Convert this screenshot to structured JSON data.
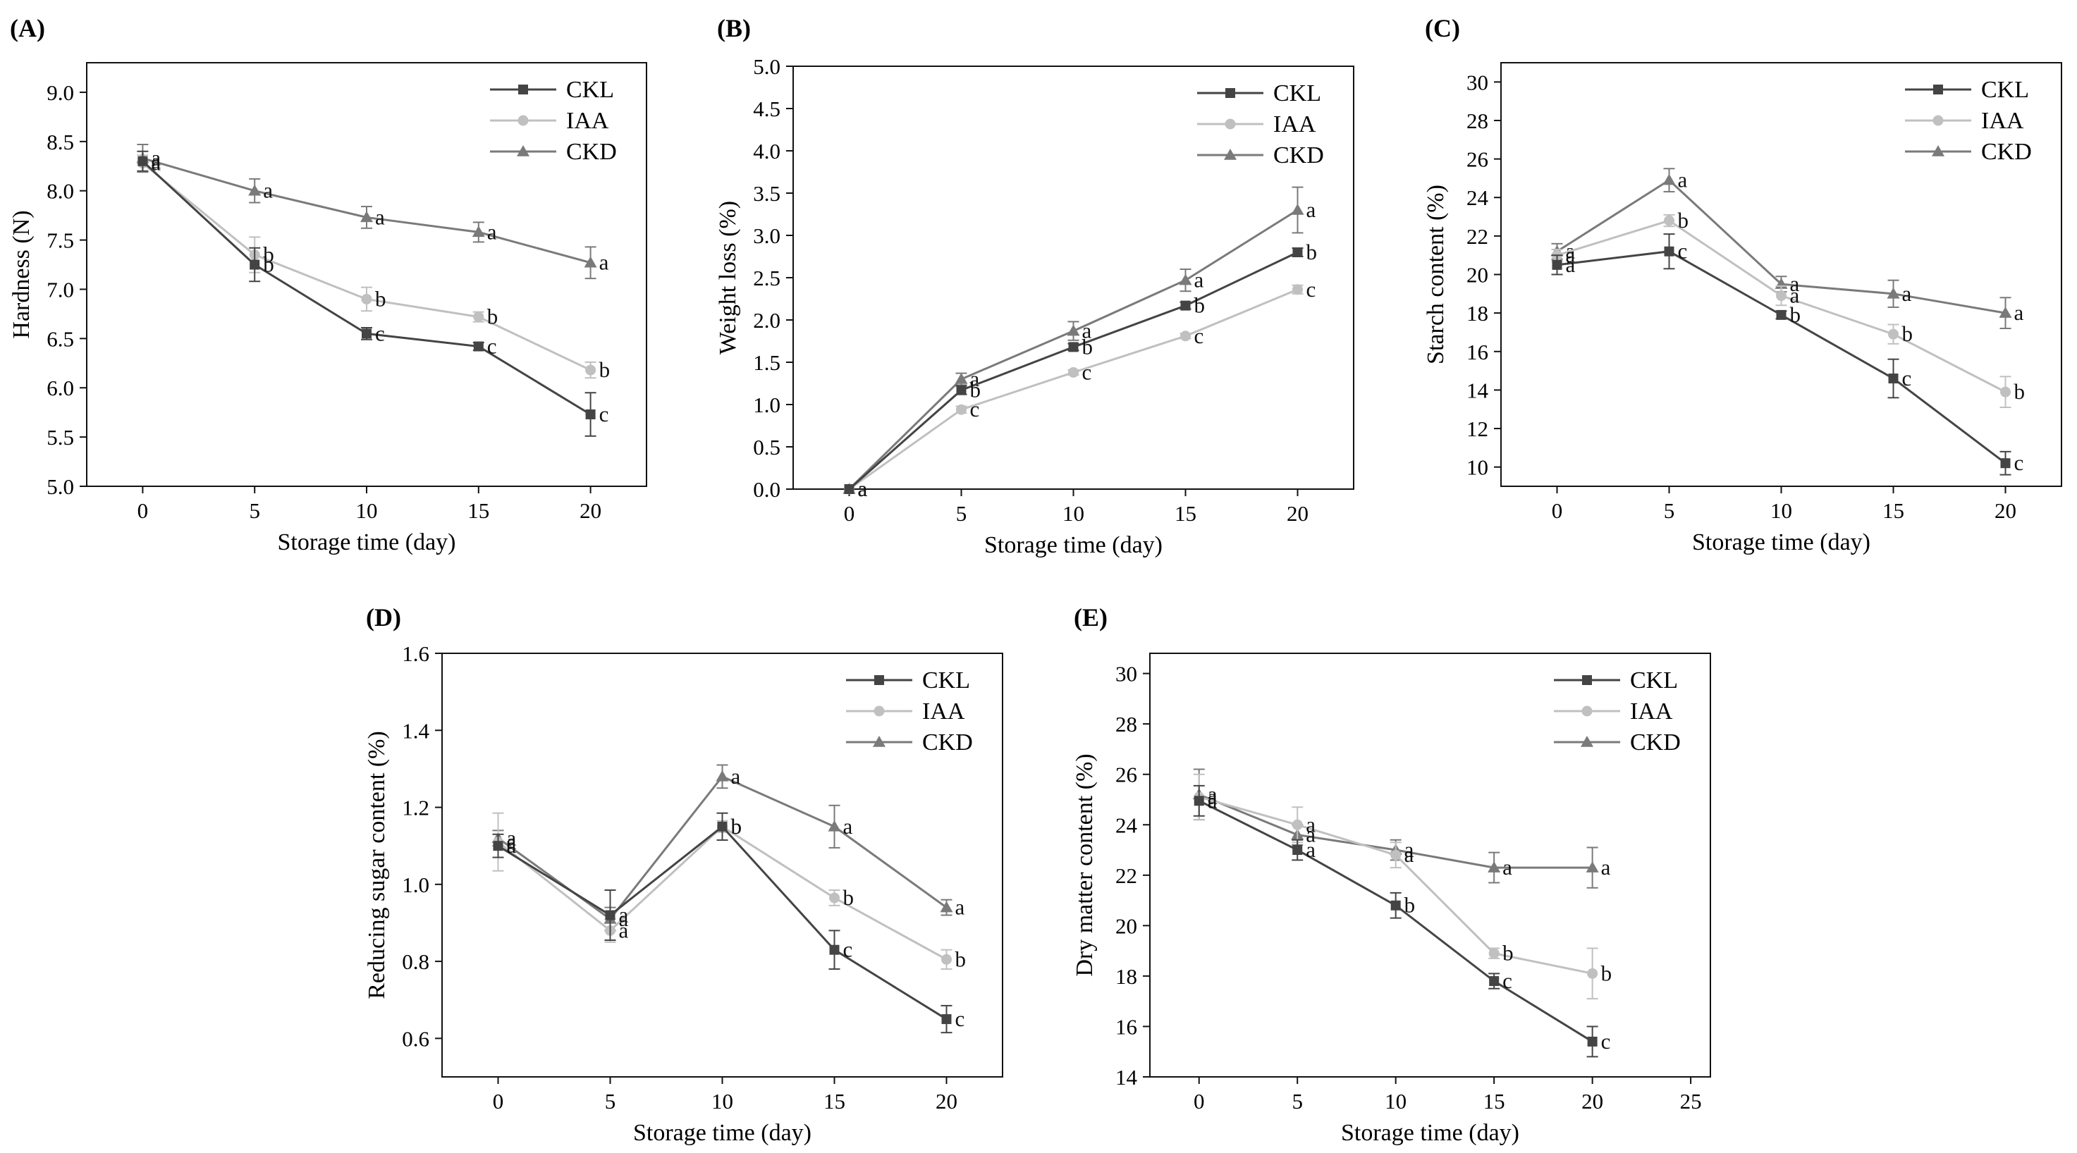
{
  "figure": {
    "series_styles": {
      "CKL": {
        "color": "#444444",
        "marker": "square"
      },
      "IAA": {
        "color": "#c0c0c0",
        "marker": "circle"
      },
      "CKD": {
        "color": "#7a7a7a",
        "marker": "triangle"
      }
    }
  },
  "chart_data": [
    {
      "id": "A",
      "panel_label": "(A)",
      "type": "line",
      "xlabel": "Storage time (day)",
      "ylabel": "Hardness (N)",
      "xlim": [
        -2.5,
        22.5
      ],
      "ylim": [
        5.0,
        9.3
      ],
      "xticks": [
        0,
        5,
        10,
        15,
        20
      ],
      "yticks": [
        5.0,
        5.5,
        6.0,
        6.5,
        7.0,
        7.5,
        8.0,
        8.5,
        9.0
      ],
      "ytick_labels": [
        "5.0",
        "5.5",
        "6.0",
        "6.5",
        "7.0",
        "7.5",
        "8.0",
        "8.5",
        "9.0"
      ],
      "legend_position": "top-right",
      "series": [
        {
          "name": "CKL",
          "x": [
            0,
            5,
            10,
            15,
            20
          ],
          "values": [
            8.3,
            7.25,
            6.55,
            6.42,
            5.73
          ],
          "errors": [
            0.1,
            0.17,
            0.06,
            0.04,
            0.22
          ],
          "letters": [
            "a",
            "b",
            "c",
            "c",
            "c"
          ]
        },
        {
          "name": "IAA",
          "x": [
            0,
            5,
            10,
            15,
            20
          ],
          "values": [
            8.28,
            7.35,
            6.9,
            6.72,
            6.18
          ],
          "errors": [
            0.08,
            0.18,
            0.12,
            0.05,
            0.08
          ],
          "letters": [
            "a",
            "b",
            "b",
            "b",
            "b"
          ]
        },
        {
          "name": "CKD",
          "x": [
            0,
            5,
            10,
            15,
            20
          ],
          "values": [
            8.33,
            8.0,
            7.73,
            7.58,
            7.27
          ],
          "errors": [
            0.14,
            0.12,
            0.11,
            0.1,
            0.16
          ],
          "letters": [
            "a",
            "a",
            "a",
            "a",
            "a"
          ]
        }
      ]
    },
    {
      "id": "B",
      "panel_label": "(B)",
      "type": "line",
      "xlabel": "Storage time (day)",
      "ylabel": "Weight loss (%)",
      "xlim": [
        -2.5,
        22.5
      ],
      "ylim": [
        0,
        5.0
      ],
      "xticks": [
        0,
        5,
        10,
        15,
        20
      ],
      "yticks": [
        0,
        0.5,
        1.0,
        1.5,
        2.0,
        2.5,
        3.0,
        3.5,
        4.0,
        4.5,
        5.0
      ],
      "ytick_labels": [
        "0.0",
        "0.5",
        "1.0",
        "1.5",
        "2.0",
        "2.5",
        "3.0",
        "3.5",
        "4.0",
        "4.5",
        "5.0"
      ],
      "legend_position": "top-right",
      "series": [
        {
          "name": "CKL",
          "x": [
            0,
            5,
            10,
            15,
            20
          ],
          "values": [
            0,
            1.17,
            1.68,
            2.17,
            2.8
          ],
          "errors": [
            0,
            0.05,
            0.04,
            0.04,
            0.05
          ],
          "letters": [
            "a",
            "b",
            "b",
            "b",
            "b"
          ]
        },
        {
          "name": "IAA",
          "x": [
            0,
            5,
            10,
            15,
            20
          ],
          "values": [
            0,
            0.94,
            1.38,
            1.81,
            2.36
          ],
          "errors": [
            0,
            0.04,
            0.03,
            0.03,
            0.05
          ],
          "letters": [
            "a",
            "c",
            "c",
            "c",
            "c"
          ]
        },
        {
          "name": "CKD",
          "x": [
            0,
            5,
            10,
            15,
            20
          ],
          "values": [
            0,
            1.3,
            1.87,
            2.47,
            3.3
          ],
          "errors": [
            0,
            0.07,
            0.11,
            0.13,
            0.27
          ],
          "letters": [
            "a",
            "a",
            "a",
            "a",
            "a"
          ]
        }
      ]
    },
    {
      "id": "C",
      "panel_label": "(C)",
      "type": "line",
      "xlabel": "Storage time (day)",
      "ylabel": "Starch content (%)",
      "xlim": [
        -2.5,
        22.5
      ],
      "ylim": [
        9,
        31
      ],
      "xticks": [
        0,
        5,
        10,
        15,
        20
      ],
      "yticks": [
        10,
        12,
        14,
        16,
        18,
        20,
        22,
        24,
        26,
        28,
        30
      ],
      "ytick_labels": [
        "10",
        "12",
        "14",
        "16",
        "18",
        "20",
        "22",
        "24",
        "26",
        "28",
        "30"
      ],
      "legend_position": "top-right",
      "series": [
        {
          "name": "CKL",
          "x": [
            0,
            5,
            10,
            15,
            20
          ],
          "values": [
            20.5,
            21.2,
            17.9,
            14.6,
            10.2
          ],
          "errors": [
            0.5,
            0.9,
            0.2,
            1.0,
            0.6
          ],
          "letters": [
            "a",
            "c",
            "b",
            "c",
            "c"
          ]
        },
        {
          "name": "IAA",
          "x": [
            0,
            5,
            10,
            15,
            20
          ],
          "values": [
            21.0,
            22.8,
            18.9,
            16.9,
            13.9
          ],
          "errors": [
            0.3,
            0.3,
            0.5,
            0.5,
            0.8
          ],
          "letters": [
            "a",
            "b",
            "a",
            "b",
            "b"
          ]
        },
        {
          "name": "CKD",
          "x": [
            0,
            5,
            10,
            15,
            20
          ],
          "values": [
            21.2,
            24.9,
            19.5,
            19.0,
            18.0
          ],
          "errors": [
            0.4,
            0.6,
            0.4,
            0.7,
            0.8
          ],
          "letters": [
            "a",
            "a",
            "a",
            "a",
            "a"
          ]
        }
      ]
    },
    {
      "id": "D",
      "panel_label": "(D)",
      "type": "line",
      "xlabel": "Storage time (day)",
      "ylabel": "Reducing sugar content (%)",
      "xlim": [
        -2.5,
        22.5
      ],
      "ylim": [
        0.5,
        1.6
      ],
      "xticks": [
        0,
        5,
        10,
        15,
        20
      ],
      "yticks": [
        0.6,
        0.8,
        1.0,
        1.2,
        1.4,
        1.6
      ],
      "ytick_labels": [
        "0.6",
        "0.8",
        "1.0",
        "1.2",
        "1.4",
        "1.6"
      ],
      "legend_position": "top-right",
      "series": [
        {
          "name": "CKL",
          "x": [
            0,
            5,
            10,
            15,
            20
          ],
          "values": [
            1.1,
            0.92,
            1.15,
            0.83,
            0.65
          ],
          "errors": [
            0.03,
            0.065,
            0.035,
            0.05,
            0.035
          ],
          "letters": [
            "a",
            "a",
            "b",
            "c",
            "c"
          ]
        },
        {
          "name": "IAA",
          "x": [
            0,
            5,
            10,
            15,
            20
          ],
          "values": [
            1.11,
            0.88,
            1.15,
            0.965,
            0.805
          ],
          "errors": [
            0.075,
            0.03,
            0.015,
            0.02,
            0.025
          ],
          "letters": [
            "a",
            "a",
            "b",
            "b",
            "b"
          ]
        },
        {
          "name": "CKD",
          "x": [
            0,
            5,
            10,
            15,
            20
          ],
          "values": [
            1.12,
            0.91,
            1.28,
            1.15,
            0.94
          ],
          "errors": [
            0.02,
            0.03,
            0.03,
            0.055,
            0.02
          ],
          "letters": [
            "a",
            "a",
            "a",
            "a",
            "a"
          ]
        }
      ]
    },
    {
      "id": "E",
      "panel_label": "(E)",
      "type": "line",
      "xlabel": "Storage time (day)",
      "ylabel": "Dry matter content (%)",
      "xlim": [
        -2.5,
        26
      ],
      "ylim": [
        14,
        30.8
      ],
      "xticks": [
        0,
        5,
        10,
        15,
        20,
        25
      ],
      "yticks": [
        14,
        16,
        18,
        20,
        22,
        24,
        26,
        28,
        30
      ],
      "ytick_labels": [
        "14",
        "16",
        "18",
        "20",
        "22",
        "24",
        "26",
        "28",
        "30"
      ],
      "legend_position": "top-right",
      "series": [
        {
          "name": "CKL",
          "x": [
            0,
            5,
            10,
            15,
            20
          ],
          "values": [
            24.95,
            23.0,
            20.8,
            17.8,
            15.4
          ],
          "errors": [
            0.6,
            0.4,
            0.5,
            0.3,
            0.6
          ],
          "letters": [
            "a",
            "a",
            "b",
            "c",
            "c"
          ]
        },
        {
          "name": "IAA",
          "x": [
            0,
            5,
            10,
            15,
            20
          ],
          "values": [
            25.1,
            24.0,
            22.8,
            18.9,
            18.1
          ],
          "errors": [
            0.9,
            0.7,
            0.5,
            0.2,
            1.0
          ],
          "letters": [
            "a",
            "a",
            "a",
            "b",
            "b"
          ]
        },
        {
          "name": "CKD",
          "x": [
            0,
            5,
            10,
            15,
            20
          ],
          "values": [
            25.2,
            23.6,
            23.0,
            22.3,
            22.3
          ],
          "errors": [
            1.0,
            0.4,
            0.4,
            0.6,
            0.8
          ],
          "letters": [
            "a",
            "a",
            "a",
            "a",
            "a"
          ]
        }
      ]
    }
  ]
}
